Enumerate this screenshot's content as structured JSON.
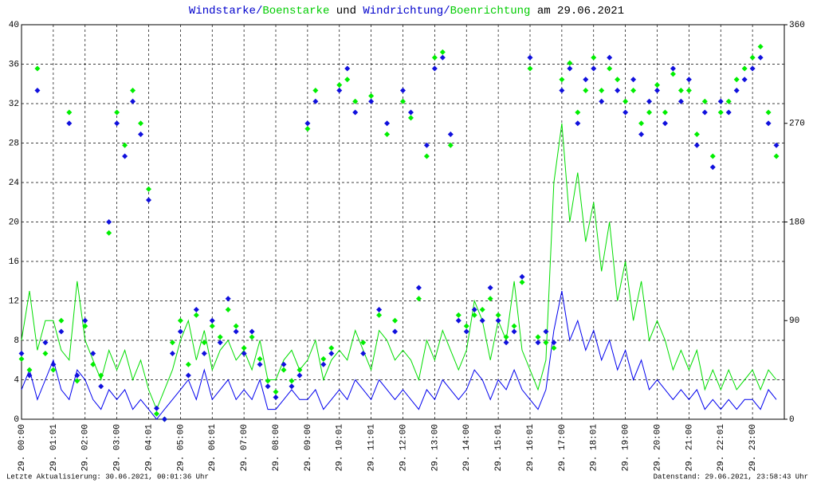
{
  "chart_data": {
    "type": "line-scatter",
    "title_parts": [
      {
        "text": "Windstarke",
        "color": "#0000cc"
      },
      {
        "text": "/",
        "color": "#0000cc"
      },
      {
        "text": "Boenstarke",
        "color": "#00cc00"
      },
      {
        "text": " und ",
        "color": "#000000"
      },
      {
        "text": "Windrichtung",
        "color": "#0000cc"
      },
      {
        "text": "/",
        "color": "#0000cc"
      },
      {
        "text": "Boenrichtung",
        "color": "#00cc00"
      },
      {
        "text": " am 29.06.2021",
        "color": "#000000"
      }
    ],
    "footer_left": "Letzte Aktualisierung: 30.06.2021, 00:01:36 Uhr",
    "footer_right": "Datenstand: 29.06.2021, 23:58:43 Uhr",
    "xlim": [
      0,
      24
    ],
    "xticks": [
      {
        "value": 0,
        "label": "29. 00:00"
      },
      {
        "value": 1,
        "label": "29. 01:01"
      },
      {
        "value": 2,
        "label": "29. 02:00"
      },
      {
        "value": 3,
        "label": "29. 03:00"
      },
      {
        "value": 4,
        "label": "29. 04:01"
      },
      {
        "value": 5,
        "label": "29. 05:00"
      },
      {
        "value": 6,
        "label": "29. 06:01"
      },
      {
        "value": 7,
        "label": "29. 07:00"
      },
      {
        "value": 8,
        "label": "29. 08:00"
      },
      {
        "value": 9,
        "label": "29. 09:00"
      },
      {
        "value": 10,
        "label": "29. 10:01"
      },
      {
        "value": 11,
        "label": "29. 11:01"
      },
      {
        "value": 12,
        "label": "29. 12:00"
      },
      {
        "value": 13,
        "label": "29. 13:00"
      },
      {
        "value": 14,
        "label": "29. 14:00"
      },
      {
        "value": 15,
        "label": "29. 15:01"
      },
      {
        "value": 16,
        "label": "29. 16:01"
      },
      {
        "value": 17,
        "label": "29. 17:00"
      },
      {
        "value": 18,
        "label": "29. 18:01"
      },
      {
        "value": 19,
        "label": "29. 19:00"
      },
      {
        "value": 20,
        "label": "29. 20:00"
      },
      {
        "value": 21,
        "label": "29. 21:00"
      },
      {
        "value": 22,
        "label": "29. 22:01"
      },
      {
        "value": 23,
        "label": "29. 23:00"
      }
    ],
    "ylim": [
      0,
      40
    ],
    "yticks": [
      0,
      4,
      8,
      12,
      16,
      20,
      24,
      28,
      32,
      36,
      40
    ],
    "y2lim": [
      0,
      360
    ],
    "y2ticks": [
      0,
      90,
      180,
      270,
      360
    ],
    "grid": true,
    "x": [
      0,
      0.25,
      0.5,
      0.75,
      1,
      1.25,
      1.5,
      1.75,
      2,
      2.25,
      2.5,
      2.75,
      3,
      3.25,
      3.5,
      3.75,
      4,
      4.25,
      4.5,
      4.75,
      5,
      5.25,
      5.5,
      5.75,
      6,
      6.25,
      6.5,
      6.75,
      7,
      7.25,
      7.5,
      7.75,
      8,
      8.25,
      8.5,
      8.75,
      9,
      9.25,
      9.5,
      9.75,
      10,
      10.25,
      10.5,
      10.75,
      11,
      11.25,
      11.5,
      11.75,
      12,
      12.25,
      12.5,
      12.75,
      13,
      13.25,
      13.5,
      13.75,
      14,
      14.25,
      14.5,
      14.75,
      15,
      15.25,
      15.5,
      15.75,
      16,
      16.25,
      16.5,
      16.75,
      17,
      17.25,
      17.5,
      17.75,
      18,
      18.25,
      18.5,
      18.75,
      19,
      19.25,
      19.5,
      19.75,
      20,
      20.25,
      20.5,
      20.75,
      21,
      21.25,
      21.5,
      21.75,
      22,
      22.25,
      22.5,
      22.75,
      23,
      23.25,
      23.5,
      23.75
    ],
    "series": [
      {
        "kind": "line",
        "color": "#00dd00",
        "values": [
          8,
          13,
          7,
          10,
          10,
          7,
          6,
          14,
          8,
          6,
          4,
          7,
          5,
          7,
          4,
          6,
          3,
          1,
          3,
          5,
          8,
          10,
          6,
          9,
          5,
          7,
          8,
          6,
          7,
          5,
          8,
          4,
          4,
          6,
          7,
          5,
          6,
          8,
          4,
          6,
          7,
          6,
          9,
          7,
          5,
          9,
          8,
          6,
          7,
          6,
          4,
          8,
          6,
          9,
          7,
          5,
          7,
          12,
          10,
          6,
          10,
          8,
          14,
          7,
          5,
          3,
          6,
          24,
          30,
          20,
          25,
          18,
          22,
          15,
          20,
          12,
          16,
          10,
          14,
          8,
          10,
          8,
          5,
          7,
          5,
          7,
          3,
          5,
          3,
          5,
          3,
          4,
          5,
          3,
          5,
          4
        ]
      },
      {
        "kind": "line",
        "color": "#0000ee",
        "values": [
          3,
          5,
          2,
          4,
          6,
          3,
          2,
          5,
          4,
          2,
          1,
          3,
          2,
          3,
          1,
          2,
          1,
          0,
          1,
          2,
          3,
          4,
          2,
          5,
          2,
          3,
          4,
          2,
          3,
          2,
          4,
          1,
          1,
          2,
          3,
          2,
          2,
          3,
          1,
          2,
          3,
          2,
          4,
          3,
          2,
          4,
          3,
          2,
          3,
          2,
          1,
          3,
          2,
          4,
          3,
          2,
          3,
          5,
          4,
          2,
          4,
          3,
          5,
          3,
          2,
          1,
          3,
          9,
          13,
          8,
          10,
          7,
          9,
          6,
          8,
          5,
          7,
          4,
          6,
          3,
          4,
          3,
          2,
          3,
          2,
          3,
          1,
          2,
          1,
          2,
          1,
          2,
          2,
          1,
          3,
          2
        ]
      },
      {
        "kind": "scatter",
        "axis": "y2",
        "color": "#00ee00",
        "values": [
          55,
          45,
          320,
          60,
          45,
          90,
          280,
          35,
          85,
          50,
          40,
          170,
          280,
          250,
          300,
          270,
          210,
          5,
          0,
          70,
          90,
          50,
          95,
          70,
          85,
          75,
          100,
          85,
          65,
          75,
          55,
          35,
          25,
          45,
          35,
          45,
          265,
          300,
          55,
          65,
          305,
          310,
          290,
          70,
          295,
          95,
          260,
          90,
          290,
          275,
          110,
          240,
          330,
          335,
          250,
          95,
          85,
          95,
          100,
          110,
          95,
          75,
          85,
          125,
          320,
          75,
          70,
          65,
          310,
          325,
          280,
          300,
          330,
          300,
          320,
          310,
          290,
          300,
          270,
          280,
          305,
          280,
          315,
          300,
          300,
          260,
          290,
          240,
          280,
          290,
          310,
          320,
          330,
          340,
          280,
          240
        ]
      },
      {
        "kind": "scatter",
        "axis": "y2",
        "color": "#1010dd",
        "values": [
          60,
          40,
          300,
          70,
          50,
          80,
          270,
          40,
          90,
          60,
          30,
          180,
          270,
          240,
          290,
          260,
          200,
          10,
          0,
          60,
          80,
          40,
          100,
          60,
          90,
          70,
          110,
          80,
          60,
          80,
          50,
          30,
          20,
          50,
          30,
          40,
          270,
          290,
          50,
          60,
          300,
          320,
          280,
          60,
          290,
          100,
          270,
          80,
          300,
          280,
          120,
          250,
          320,
          330,
          260,
          90,
          80,
          100,
          90,
          120,
          90,
          70,
          80,
          130,
          330,
          70,
          80,
          70,
          300,
          320,
          270,
          310,
          320,
          290,
          330,
          300,
          280,
          310,
          260,
          290,
          300,
          270,
          320,
          290,
          310,
          250,
          280,
          230,
          290,
          280,
          300,
          310,
          320,
          330,
          270,
          250
        ]
      }
    ]
  }
}
